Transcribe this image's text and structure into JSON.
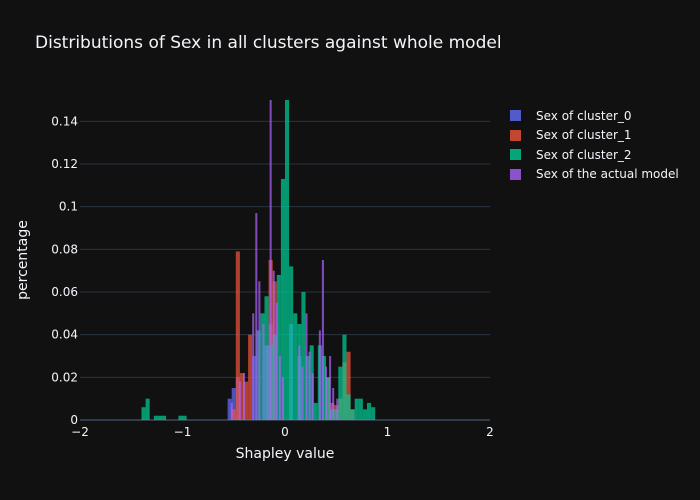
{
  "chart_data": {
    "type": "bar",
    "title": "Distributions of Sex in all clusters against whole model",
    "xlabel": "Shapley value",
    "ylabel": "percentage",
    "xlim": [
      -2,
      2
    ],
    "ylim": [
      0,
      0.15
    ],
    "xticks": [
      -2,
      -1,
      0,
      1,
      2
    ],
    "xtick_labels": [
      "−2",
      "−1",
      "0",
      "1",
      "2"
    ],
    "yticks": [
      0,
      0.02,
      0.04,
      0.06,
      0.08,
      0.1,
      0.12,
      0.14
    ],
    "ytick_labels": [
      "0",
      "0.02",
      "0.04",
      "0.06",
      "0.08",
      "0.1",
      "0.12",
      "0.14"
    ],
    "grid": true,
    "legend_position": "top-right",
    "barmode": "overlay",
    "series": [
      {
        "name": "Sex of cluster_0",
        "color": "#636efa",
        "bins": [
          [
            -0.56,
            -0.52,
            0.01
          ],
          [
            -0.52,
            -0.48,
            0.015
          ],
          [
            -0.48,
            -0.44,
            0.02
          ],
          [
            -0.32,
            -0.28,
            0.03
          ],
          [
            -0.2,
            -0.16,
            0.035
          ],
          [
            -0.16,
            -0.12,
            0.045
          ],
          [
            0.04,
            0.08,
            0.045
          ],
          [
            0.12,
            0.16,
            0.03
          ]
        ]
      },
      {
        "name": "Sex of cluster_1",
        "color": "#ef553b",
        "bins": [
          [
            -0.52,
            -0.48,
            0.005
          ],
          [
            -0.48,
            -0.44,
            0.079
          ],
          [
            -0.44,
            -0.4,
            0.022
          ],
          [
            -0.4,
            -0.36,
            0.018
          ],
          [
            -0.36,
            -0.32,
            0.04
          ],
          [
            -0.16,
            -0.12,
            0.075
          ],
          [
            -0.12,
            -0.08,
            0.065
          ],
          [
            0.4,
            0.44,
            0.02
          ],
          [
            0.44,
            0.48,
            0.008
          ],
          [
            0.48,
            0.52,
            0.007
          ],
          [
            0.52,
            0.56,
            0.01
          ],
          [
            0.56,
            0.6,
            0.027
          ],
          [
            0.6,
            0.64,
            0.032
          ],
          [
            0.64,
            0.68,
            0.005
          ]
        ]
      },
      {
        "name": "Sex of cluster_2",
        "color": "#00cc96",
        "bins": [
          [
            -1.4,
            -1.36,
            0.006
          ],
          [
            -1.36,
            -1.32,
            0.01
          ],
          [
            -1.28,
            -1.24,
            0.002
          ],
          [
            -1.24,
            -1.2,
            0.002
          ],
          [
            -1.2,
            -1.16,
            0.002
          ],
          [
            -1.04,
            -1.0,
            0.002
          ],
          [
            -1.0,
            -0.96,
            0.002
          ],
          [
            -0.28,
            -0.24,
            0.042
          ],
          [
            -0.24,
            -0.2,
            0.05
          ],
          [
            -0.2,
            -0.16,
            0.058
          ],
          [
            -0.16,
            -0.12,
            0.035
          ],
          [
            -0.12,
            -0.08,
            0.04
          ],
          [
            -0.08,
            -0.04,
            0.068
          ],
          [
            -0.04,
            0.0,
            0.113
          ],
          [
            0.0,
            0.04,
            0.15
          ],
          [
            0.04,
            0.08,
            0.072
          ],
          [
            0.08,
            0.12,
            0.05
          ],
          [
            0.12,
            0.16,
            0.045
          ],
          [
            0.16,
            0.2,
            0.06
          ],
          [
            0.2,
            0.24,
            0.03
          ],
          [
            0.24,
            0.28,
            0.035
          ],
          [
            0.28,
            0.32,
            0.008
          ],
          [
            0.32,
            0.36,
            0.035
          ],
          [
            0.36,
            0.4,
            0.03
          ],
          [
            0.4,
            0.44,
            0.02
          ],
          [
            0.44,
            0.48,
            0.005
          ],
          [
            0.48,
            0.52,
            0.005
          ],
          [
            0.52,
            0.56,
            0.025
          ],
          [
            0.56,
            0.6,
            0.04
          ],
          [
            0.6,
            0.64,
            0.012
          ],
          [
            0.64,
            0.68,
            0.005
          ],
          [
            0.68,
            0.72,
            0.01
          ],
          [
            0.72,
            0.76,
            0.01
          ],
          [
            0.76,
            0.8,
            0.005
          ],
          [
            0.8,
            0.84,
            0.008
          ],
          [
            0.84,
            0.88,
            0.006
          ]
        ]
      },
      {
        "name": "Sex of the actual model",
        "color": "#ab63fa",
        "bins": [
          [
            -0.53,
            -0.51,
            0.008
          ],
          [
            -0.45,
            -0.43,
            0.018
          ],
          [
            -0.41,
            -0.39,
            0.022
          ],
          [
            -0.32,
            -0.3,
            0.05
          ],
          [
            -0.29,
            -0.27,
            0.097
          ],
          [
            -0.26,
            -0.24,
            0.065
          ],
          [
            -0.22,
            -0.2,
            0.045
          ],
          [
            -0.18,
            -0.16,
            0.035
          ],
          [
            -0.15,
            -0.13,
            0.15
          ],
          [
            -0.12,
            -0.1,
            0.07
          ],
          [
            -0.09,
            -0.07,
            0.055
          ],
          [
            -0.06,
            -0.04,
            0.03
          ],
          [
            -0.03,
            -0.01,
            0.02
          ],
          [
            0.13,
            0.15,
            0.035
          ],
          [
            0.16,
            0.18,
            0.025
          ],
          [
            0.2,
            0.22,
            0.05
          ],
          [
            0.23,
            0.25,
            0.032
          ],
          [
            0.26,
            0.28,
            0.022
          ],
          [
            0.33,
            0.35,
            0.042
          ],
          [
            0.36,
            0.38,
            0.075
          ],
          [
            0.39,
            0.41,
            0.025
          ],
          [
            0.43,
            0.45,
            0.03
          ],
          [
            0.46,
            0.48,
            0.015
          ],
          [
            0.5,
            0.52,
            0.01
          ]
        ]
      }
    ]
  }
}
